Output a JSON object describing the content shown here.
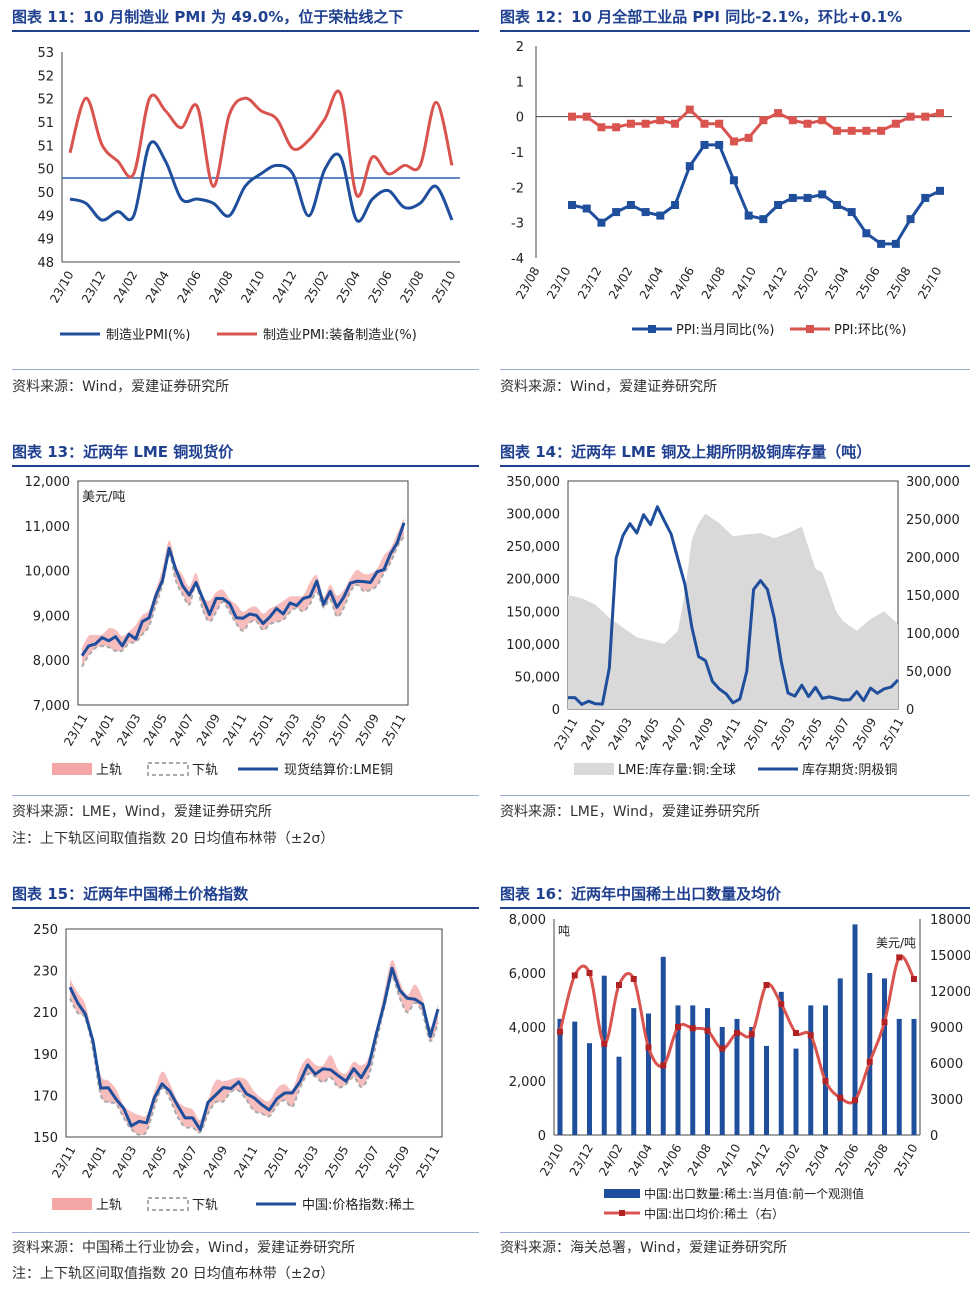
{
  "panels": [
    {
      "title": "图表 11：10 月制造业 PMI 为 49.0%，位于荣枯线之下",
      "source": "资料来源：Wind，爱建证券研究所",
      "chart_data": {
        "type": "line",
        "title": "图表 11：10 月制造业 PMI 为 49.0%，位于荣枯线之下",
        "categories": [
          "23/10",
          "23/11",
          "23/12",
          "24/01",
          "24/02",
          "24/03",
          "24/04",
          "24/05",
          "24/06",
          "24/07",
          "24/08",
          "24/09",
          "24/10",
          "24/11",
          "24/12",
          "25/01",
          "25/02",
          "25/03",
          "25/04",
          "25/05",
          "25/06",
          "25/07",
          "25/08",
          "25/09",
          "25/10"
        ],
        "tick_labels": [
          "23/10",
          "23/12",
          "24/02",
          "24/04",
          "24/06",
          "24/08",
          "24/10",
          "24/12",
          "25/02",
          "25/04",
          "25/06",
          "25/08",
          "25/10"
        ],
        "ylim": [
          48,
          53
        ],
        "yticks": [
          "48",
          "49",
          "49",
          "50",
          "50",
          "51",
          "51",
          "52",
          "52",
          "53"
        ],
        "reference_line": 50,
        "series": [
          {
            "name": "制造业PMI(%)",
            "color": "#1f4e9c",
            "values": [
              49.5,
              49.4,
              49.0,
              49.2,
              49.1,
              50.8,
              50.4,
              49.5,
              49.5,
              49.4,
              49.1,
              49.8,
              50.1,
              50.3,
              50.1,
              49.1,
              50.2,
              50.5,
              49.0,
              49.5,
              49.7,
              49.3,
              49.4,
              49.8,
              49.0
            ]
          },
          {
            "name": "制造业PMI:装备制造业(%)",
            "color": "#d9534f",
            "values": [
              50.6,
              51.9,
              50.8,
              50.4,
              50.1,
              51.9,
              51.6,
              51.2,
              51.7,
              49.8,
              51.5,
              51.9,
              51.6,
              51.4,
              50.7,
              50.9,
              51.4,
              52.0,
              49.6,
              50.5,
              50.1,
              50.3,
              50.3,
              51.8,
              50.3
            ]
          }
        ]
      }
    },
    {
      "title": "图表 12：10 月全部工业品 PPI 同比-2.1%，环比+0.1%",
      "source": "资料来源：Wind，爱建证券研究所",
      "chart_data": {
        "type": "line",
        "title": "图表 12：10 月全部工业品 PPI 同比-2.1%，环比+0.1%",
        "categories": [
          "23/09",
          "23/10",
          "23/11",
          "23/12",
          "24/01",
          "24/02",
          "24/03",
          "24/04",
          "24/05",
          "24/06",
          "24/07",
          "24/08",
          "24/09",
          "24/10",
          "24/11",
          "24/12",
          "25/01",
          "25/02",
          "25/03",
          "25/04",
          "25/05",
          "25/06",
          "25/07",
          "25/08",
          "25/09",
          "25/10"
        ],
        "tick_labels": [
          "23/08",
          "23/10",
          "23/12",
          "24/02",
          "24/04",
          "24/06",
          "24/08",
          "24/10",
          "24/12",
          "25/02",
          "25/04",
          "25/06",
          "25/08",
          "25/10"
        ],
        "ylim": [
          -4,
          2
        ],
        "yticks": [
          "-4",
          "-3",
          "-2",
          "-1",
          "0",
          "1",
          "2"
        ],
        "series": [
          {
            "name": "PPI:当月同比(%)",
            "color": "#1f4e9c",
            "values": [
              -2.5,
              -2.6,
              -3.0,
              -2.7,
              -2.5,
              -2.7,
              -2.8,
              -2.5,
              -1.4,
              -0.8,
              -0.8,
              -1.8,
              -2.8,
              -2.9,
              -2.5,
              -2.3,
              -2.3,
              -2.2,
              -2.5,
              -2.7,
              -3.3,
              -3.6,
              -3.6,
              -2.9,
              -2.3,
              -2.1
            ]
          },
          {
            "name": "PPI:环比(%)",
            "color": "#d9534f",
            "values": [
              0.0,
              0.0,
              -0.3,
              -0.3,
              -0.2,
              -0.2,
              -0.1,
              -0.2,
              0.2,
              -0.2,
              -0.2,
              -0.7,
              -0.6,
              -0.1,
              0.1,
              -0.1,
              -0.2,
              -0.1,
              -0.4,
              -0.4,
              -0.4,
              -0.4,
              -0.2,
              0.0,
              0.0,
              0.1
            ]
          }
        ]
      }
    },
    {
      "title": "图表 13：近两年 LME 铜现货价",
      "source": "资料来源：LME，Wind，爱建证券研究所",
      "note": "注：上下轨区间取值指数 20 日均值布林带（±2σ）",
      "chart_data": {
        "type": "line",
        "title": "图表 13：近两年 LME 铜现货价",
        "unit": "美元/吨",
        "ylim": [
          7000,
          12000
        ],
        "yticks": [
          "7,000",
          "8,000",
          "9,000",
          "10,000",
          "11,000",
          "12,000"
        ],
        "tick_labels": [
          "23/11",
          "24/01",
          "24/03",
          "24/05",
          "24/07",
          "24/09",
          "24/11",
          "25/01",
          "25/03",
          "25/05",
          "25/07",
          "25/09",
          "25/11"
        ],
        "x_range": [
          0,
          24
        ],
        "series": [
          {
            "name": "现货结算价:LME铜",
            "color": "#1f4e9c",
            "band": 180,
            "x": [
              0,
              0.5,
              1,
              1.5,
              2,
              2.5,
              3,
              3.5,
              4,
              4.5,
              5,
              5.5,
              6,
              6.5,
              7,
              7.5,
              8,
              8.5,
              9,
              9.5,
              10,
              10.5,
              11,
              11.5,
              12,
              12.5,
              13,
              13.5,
              14,
              14.5,
              15,
              15.5,
              16,
              16.5,
              17,
              17.5,
              18,
              18.5,
              19,
              19.5,
              20,
              20.5,
              21,
              21.5,
              22,
              22.5,
              23,
              23.5,
              24
            ],
            "values": [
              8100,
              8300,
              8400,
              8450,
              8500,
              8450,
              8400,
              8500,
              8550,
              8800,
              9000,
              9400,
              9800,
              10500,
              10000,
              9700,
              9400,
              9800,
              9300,
              9100,
              9300,
              9450,
              9200,
              9000,
              8900,
              9050,
              9000,
              8800,
              9000,
              9100,
              9100,
              9200,
              9300,
              9300,
              9500,
              9700,
              9300,
              9500,
              9200,
              9400,
              9700,
              9800,
              9700,
              9800,
              9900,
              10100,
              10300,
              10700,
              11000
            ]
          },
          {
            "name": "上轨",
            "color": "#f4a6a6"
          },
          {
            "name": "下轨",
            "color": "#aaaaaa"
          }
        ]
      }
    },
    {
      "title": "图表 14：近两年 LME 铜及上期所阴极铜库存量（吨）",
      "source": "资料来源：LME，Wind，爱建证券研究所",
      "chart_data": {
        "type": "area",
        "title": "图表 14：近两年 LME 铜及上期所阴极铜库存量（吨）",
        "ylim_left": [
          0,
          350000
        ],
        "ylim_right": [
          0,
          300000
        ],
        "yticks_left": [
          "0",
          "50,000",
          "100,000",
          "150,000",
          "200,000",
          "250,000",
          "300,000",
          "350,000"
        ],
        "yticks_right": [
          "0",
          "50,000",
          "100,000",
          "150,000",
          "200,000",
          "250,000",
          "300,000"
        ],
        "tick_labels": [
          "23/11",
          "24/01",
          "24/03",
          "24/05",
          "24/07",
          "24/09",
          "24/11",
          "25/01",
          "25/03",
          "25/05",
          "25/07",
          "25/09",
          "25/11"
        ],
        "x_range": [
          0,
          24
        ],
        "series": [
          {
            "name": "LME:库存量:铜:全球",
            "color": "#d9d9d9",
            "axis": "left",
            "x": [
              0,
              1,
              2,
              3,
              4,
              5,
              6,
              7,
              8,
              8.5,
              9,
              9.5,
              10,
              11,
              12,
              13,
              14,
              15,
              16,
              17,
              18,
              18.5,
              19,
              19.5,
              20,
              21,
              22,
              23,
              24
            ],
            "values": [
              175000,
              170000,
              160000,
              140000,
              125000,
              110000,
              105000,
              100000,
              120000,
              180000,
              260000,
              285000,
              300000,
              285000,
              265000,
              268000,
              270000,
              262000,
              270000,
              280000,
              215000,
              210000,
              180000,
              150000,
              135000,
              120000,
              138000,
              150000,
              130000
            ]
          },
          {
            "name": "库存期货:阴极铜",
            "color": "#1f4e9c",
            "axis": "right",
            "x": [
              0,
              0.5,
              1,
              1.5,
              2,
              2.5,
              3,
              3.5,
              4,
              4.5,
              5,
              5.5,
              6,
              6.5,
              7,
              7.5,
              8,
              8.5,
              9,
              9.5,
              10,
              10.5,
              11,
              11.5,
              12,
              12.5,
              13,
              13.5,
              14,
              14.5,
              15,
              15.5,
              16,
              16.5,
              17,
              17.5,
              18,
              18.5,
              19,
              19.5,
              20,
              20.5,
              21,
              21.5,
              22,
              22.5,
              23,
              23.5,
              24
            ],
            "values": [
              15000,
              12000,
              10000,
              8000,
              6000,
              10000,
              50000,
              200000,
              230000,
              240000,
              235000,
              255000,
              240000,
              270000,
              245000,
              230000,
              200000,
              160000,
              110000,
              70000,
              60000,
              40000,
              25000,
              18000,
              12000,
              10000,
              50000,
              160000,
              165000,
              160000,
              120000,
              60000,
              25000,
              15000,
              30000,
              20000,
              25000,
              15000,
              18000,
              10000,
              15000,
              12000,
              20000,
              15000,
              25000,
              20000,
              30000,
              25000,
              40000
            ]
          }
        ]
      }
    },
    {
      "title": "图表 15：近两年中国稀土价格指数",
      "source": "资料来源：中国稀土行业协会，Wind，爱建证券研究所",
      "note": "注：上下轨区间取值指数 20 日均值布林带（±2σ）",
      "chart_data": {
        "type": "line",
        "title": "图表 15：近两年中国稀土价格指数",
        "ylim": [
          150,
          250
        ],
        "yticks": [
          "150",
          "170",
          "190",
          "210",
          "230",
          "250"
        ],
        "tick_labels": [
          "23/11",
          "24/01",
          "24/03",
          "24/05",
          "24/07",
          "24/09",
          "24/11",
          "25/01",
          "25/03",
          "25/05",
          "25/07",
          "25/09",
          "25/11"
        ],
        "x_range": [
          0,
          24
        ],
        "series": [
          {
            "name": "中国:价格指数:稀土",
            "color": "#1f4e9c",
            "band": 4,
            "x": [
              0,
              0.5,
              1,
              1.5,
              2,
              2.5,
              3,
              3.5,
              4,
              4.5,
              5,
              5.5,
              6,
              6.5,
              7,
              7.5,
              8,
              8.5,
              9,
              9.5,
              10,
              10.5,
              11,
              11.5,
              12,
              12.5,
              13,
              13.5,
              14,
              14.5,
              15,
              15.5,
              16,
              16.5,
              17,
              17.5,
              18,
              18.5,
              19,
              19.5,
              20,
              20.5,
              21,
              21.5,
              22,
              22.5,
              23,
              23.5,
              24
            ],
            "values": [
              222,
              214,
              210,
              195,
              175,
              172,
              170,
              162,
              157,
              156,
              158,
              168,
              176,
              172,
              165,
              160,
              158,
              155,
              165,
              172,
              172,
              175,
              175,
              172,
              168,
              166,
              163,
              168,
              172,
              170,
              178,
              183,
              182,
              181,
              184,
              178,
              178,
              182,
              179,
              185,
              200,
              215,
              230,
              222,
              215,
              218,
              212,
              200,
              210
            ]
          },
          {
            "name": "上轨",
            "color": "#f4a6a6"
          },
          {
            "name": "下轨",
            "color": "#aaaaaa"
          }
        ]
      }
    },
    {
      "title": "图表 16：近两年中国稀土出口数量及均价",
      "source": "资料来源：海关总署，Wind，爱建证券研究所",
      "chart_data": {
        "type": "bar",
        "title": "图表 16：近两年中国稀土出口数量及均价",
        "unit_left": "吨",
        "unit_right": "美元/吨",
        "ylim_left": [
          0,
          8000
        ],
        "ylim_right": [
          0,
          18000
        ],
        "yticks_left": [
          "0",
          "2,000",
          "4,000",
          "6,000",
          "8,000"
        ],
        "yticks_right": [
          "0",
          "3000",
          "6000",
          "9000",
          "12000",
          "15000",
          "18000"
        ],
        "categories": [
          "23/10",
          "23/11",
          "23/12",
          "24/01",
          "24/02",
          "24/03",
          "24/04",
          "24/05",
          "24/06",
          "24/07",
          "24/08",
          "24/09",
          "24/10",
          "24/11",
          "24/12",
          "25/01",
          "25/02",
          "25/03",
          "25/04",
          "25/05",
          "25/06",
          "25/07",
          "25/08",
          "25/09",
          "25/10"
        ],
        "tick_labels": [
          "23/10",
          "23/12",
          "24/02",
          "24/04",
          "24/06",
          "24/08",
          "24/10",
          "24/12",
          "25/02",
          "25/04",
          "25/06",
          "25/08",
          "25/10"
        ],
        "series": [
          {
            "name": "中国:出口数量:稀土:当月值:前一个观测值",
            "type": "bar",
            "color": "#1f4e9c",
            "axis": "left",
            "values": [
              4300,
              4200,
              3400,
              5900,
              2900,
              4700,
              4500,
              6600,
              4800,
              4800,
              4700,
              4000,
              4300,
              4000,
              3300,
              5300,
              3200,
              4800,
              4800,
              5800,
              7800,
              6000,
              5800,
              4300,
              4300
            ]
          },
          {
            "name": "中国:出口均价:稀土（右）",
            "type": "line",
            "color": "#d9534f",
            "axis": "right",
            "values": [
              8600,
              13300,
              13500,
              7600,
              12500,
              13000,
              7300,
              5800,
              9000,
              8900,
              8700,
              7200,
              8500,
              8400,
              12500,
              10900,
              8500,
              8300,
              4500,
              3100,
              2900,
              6100,
              9400,
              14800,
              13000
            ]
          }
        ]
      }
    }
  ]
}
